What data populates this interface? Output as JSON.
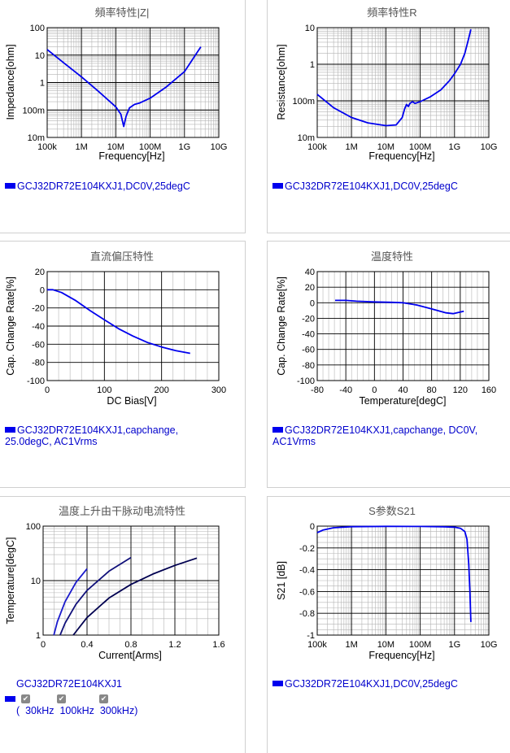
{
  "colors": {
    "curve": "#0000ee",
    "legend_text": "#0000cc",
    "grid_major": "#000000",
    "grid_minor": "#b4b4b4",
    "title": "#555555"
  },
  "panels": [
    {
      "title": "頻率特性|Z|",
      "legend": "GCJ32DR72E104KXJ1,DC0V,25degC",
      "chart_data": {
        "type": "line",
        "title": "頻率特性|Z|",
        "xlabel": "Frequency[Hz]",
        "ylabel": "Impedance[ohm]",
        "xscale": "log",
        "yscale": "log",
        "xlim": [
          100000,
          10000000000
        ],
        "ylim": [
          0.01,
          100
        ],
        "xticks": [
          "100k",
          "1M",
          "10M",
          "100M",
          "1G",
          "10G"
        ],
        "yticks": [
          "10m",
          "100m",
          "1",
          "10",
          "100"
        ],
        "series": [
          {
            "x": [
              100000,
              300000,
              1000000,
              3000000,
              10000000,
              14000000,
              17000000,
              20000000,
              25000000,
              35000000,
              50000000,
              100000000,
              300000000,
              1000000000,
              3000000000
            ],
            "y": [
              16,
              5.3,
              1.6,
              0.5,
              0.13,
              0.07,
              0.025,
              0.06,
              0.12,
              0.16,
              0.18,
              0.27,
              0.7,
              2.5,
              20
            ]
          }
        ]
      }
    },
    {
      "title": "頻率特性R",
      "legend": "GCJ32DR72E104KXJ1,DC0V,25degC",
      "chart_data": {
        "type": "line",
        "title": "頻率特性R",
        "xlabel": "Frequency[Hz]",
        "ylabel": "Resistance[ohm]",
        "xscale": "log",
        "yscale": "log",
        "xlim": [
          100000,
          10000000000
        ],
        "ylim": [
          0.01,
          10
        ],
        "xticks": [
          "100k",
          "1M",
          "10M",
          "100M",
          "1G",
          "10G"
        ],
        "yticks": [
          "10m",
          "100m",
          "1",
          "10"
        ],
        "series": [
          {
            "x": [
              100000,
              300000,
              1000000,
              3000000,
              10000000,
              20000000,
              30000000,
              35000000,
              40000000,
              45000000,
              50000000,
              60000000,
              70000000,
              100000000,
              200000000,
              400000000,
              700000000,
              1000000000,
              1500000000,
              2000000000,
              2500000000,
              3000000000
            ],
            "y": [
              0.15,
              0.065,
              0.035,
              0.025,
              0.021,
              0.022,
              0.035,
              0.06,
              0.08,
              0.07,
              0.085,
              0.095,
              0.085,
              0.095,
              0.13,
              0.2,
              0.35,
              0.55,
              1.0,
              2.0,
              4.5,
              9.0
            ]
          }
        ]
      }
    },
    {
      "title": "直流偏压特性",
      "legend": "GCJ32DR72E104KXJ1,capchange, 25.0degC, AC1Vrms",
      "chart_data": {
        "type": "line",
        "title": "直流偏压特性",
        "xlabel": "DC Bias[V]",
        "ylabel": "Cap. Change Rate[%]",
        "xlim": [
          0,
          300
        ],
        "ylim": [
          -100,
          20
        ],
        "xticks": [
          "0",
          "100",
          "200",
          "300"
        ],
        "yticks": [
          "20",
          "0",
          "-20",
          "-40",
          "-60",
          "-80",
          "-100"
        ],
        "series": [
          {
            "x": [
              0,
              10,
              25,
              50,
              75,
              100,
              125,
              150,
              175,
              200,
              225,
              250
            ],
            "y": [
              0,
              0,
              -3,
              -12,
              -23,
              -33,
              -43,
              -51,
              -58,
              -63,
              -67,
              -70
            ]
          }
        ]
      }
    },
    {
      "title": "温度特性",
      "legend": "GCJ32DR72E104KXJ1,capchange, DC0V, AC1Vrms",
      "chart_data": {
        "type": "line",
        "title": "温度特性",
        "xlabel": "Temperature[degC]",
        "ylabel": "Cap. Change Rate[%]",
        "xlim": [
          -80,
          160
        ],
        "ylim": [
          -100,
          40
        ],
        "xticks": [
          "-80",
          "-40",
          "0",
          "40",
          "80",
          "120",
          "160"
        ],
        "yticks": [
          "40",
          "20",
          "0",
          "-20",
          "-40",
          "-60",
          "-80",
          "-100"
        ],
        "series": [
          {
            "x": [
              -55,
              -40,
              -25,
              0,
              25,
              40,
              60,
              80,
              100,
              110,
              125
            ],
            "y": [
              3,
              3,
              2,
              1,
              0.5,
              0,
              -3,
              -8,
              -13,
              -14,
              -11
            ]
          }
        ]
      }
    },
    {
      "title": "温度上升由干脉动电流特性",
      "legend": "GCJ32DR72E104KXJ1",
      "checkboxes": [
        "30kHz",
        "100kHz",
        "300kHz"
      ],
      "checkbox_line": "(  30kHz  100kHz  300kHz)",
      "chart_data": {
        "type": "line",
        "title": "温度上升由干脉动电流特性",
        "xlabel": "Current[Arms]",
        "ylabel": "Temperature[degC]",
        "yscale": "log",
        "xlim": [
          0,
          1.6
        ],
        "ylim": [
          1,
          100
        ],
        "xticks": [
          "0",
          "0.4",
          "0.8",
          "1.2",
          "1.6"
        ],
        "yticks": [
          "1",
          "10",
          "100"
        ],
        "series": [
          {
            "name": "300kHz",
            "color": "#1a1acc",
            "x": [
              0.098,
              0.13,
              0.2,
              0.3,
              0.4
            ],
            "y": [
              1,
              1.76,
              4.1,
              9.3,
              16.5
            ]
          },
          {
            "name": "100kHz",
            "color": "#10107a",
            "x": [
              0.155,
              0.2,
              0.3,
              0.4,
              0.6,
              0.8
            ],
            "y": [
              1,
              1.66,
              3.7,
              6.6,
              14.9,
              26.5
            ]
          },
          {
            "name": "30kHz",
            "color": "#000050",
            "x": [
              0.275,
              0.4,
              0.6,
              0.8,
              1.0,
              1.2,
              1.4
            ],
            "y": [
              1,
              2.1,
              4.8,
              8.5,
              13.2,
              19.0,
              25.9
            ]
          }
        ]
      }
    },
    {
      "title": "S参数S21",
      "legend": "GCJ32DR72E104KXJ1,DC0V,25degC",
      "chart_data": {
        "type": "line",
        "title": "S参数S21",
        "xlabel": "Frequency[Hz]",
        "ylabel": "S21 [dB]",
        "xscale": "log",
        "xlim": [
          100000,
          10000000000
        ],
        "ylim": [
          -1,
          0
        ],
        "xticks": [
          "100k",
          "1M",
          "10M",
          "100M",
          "1G",
          "10G"
        ],
        "yticks": [
          "0",
          "-0.2",
          "-0.4",
          "-0.6",
          "-0.8",
          "-1"
        ],
        "series": [
          {
            "x": [
              100000,
              150000,
              300000,
              1000000,
              10000000,
              100000000,
              500000000,
              1000000000,
              1500000000,
              2000000000,
              2300000000,
              2600000000,
              2800000000,
              3000000000
            ],
            "y": [
              -0.06,
              -0.035,
              -0.015,
              -0.005,
              -0.002,
              -0.003,
              -0.006,
              -0.01,
              -0.02,
              -0.05,
              -0.12,
              -0.35,
              -0.6,
              -0.88
            ]
          }
        ]
      }
    }
  ]
}
